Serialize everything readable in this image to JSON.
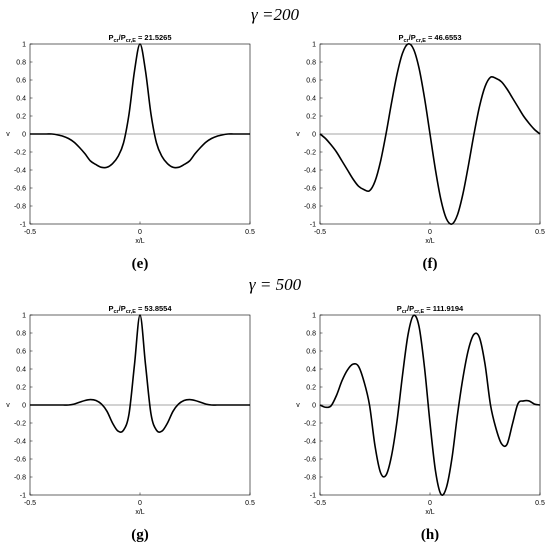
{
  "headings": [
    "γ =200",
    "γ = 500"
  ],
  "chart_data": [
    {
      "type": "line",
      "title": [
        "P",
        "cr",
        "/P",
        "cr,E",
        " = 21.5265"
      ],
      "caption": "(e)",
      "xlabel": "x/L",
      "ylabel": "v",
      "xlim": [
        -0.5,
        0.5
      ],
      "ylim": [
        -1,
        1
      ],
      "xticks": [
        -0.5,
        0,
        0.5
      ],
      "yticks": [
        -1,
        -0.8,
        -0.6,
        -0.4,
        -0.2,
        0,
        0.2,
        0.4,
        0.6,
        0.8,
        1
      ],
      "zero_line": true,
      "x": [
        -0.5,
        -0.475,
        -0.45,
        -0.425,
        -0.4,
        -0.375,
        -0.35,
        -0.325,
        -0.3,
        -0.275,
        -0.25,
        -0.225,
        -0.2,
        -0.175,
        -0.15,
        -0.125,
        -0.1,
        -0.075,
        -0.05,
        -0.025,
        0,
        0.025,
        0.05,
        0.075,
        0.1,
        0.125,
        0.15,
        0.175,
        0.2,
        0.225,
        0.25,
        0.275,
        0.3,
        0.325,
        0.35,
        0.375,
        0.4,
        0.425,
        0.45,
        0.475,
        0.5
      ],
      "series": [
        {
          "color": "#000000",
          "values": [
            0,
            0,
            0,
            0,
            0,
            -0.01,
            -0.025,
            -0.05,
            -0.09,
            -0.15,
            -0.22,
            -0.3,
            -0.34,
            -0.37,
            -0.37,
            -0.33,
            -0.25,
            -0.1,
            0.22,
            0.7,
            1,
            0.7,
            0.22,
            -0.1,
            -0.25,
            -0.33,
            -0.37,
            -0.37,
            -0.34,
            -0.3,
            -0.22,
            -0.15,
            -0.09,
            -0.05,
            -0.025,
            -0.01,
            0,
            0,
            0,
            0,
            0
          ]
        }
      ]
    },
    {
      "type": "line",
      "title": [
        "P",
        "cr",
        "/P",
        "cr,E",
        " = 46.6553"
      ],
      "caption": "(f)",
      "xlabel": "x/L",
      "ylabel": "v",
      "xlim": [
        -0.5,
        0.5
      ],
      "ylim": [
        -1,
        1
      ],
      "xticks": [
        -0.5,
        0,
        0.5
      ],
      "yticks": [
        -1,
        -0.8,
        -0.6,
        -0.4,
        -0.2,
        0,
        0.2,
        0.4,
        0.6,
        0.8,
        1
      ],
      "zero_line": true,
      "x": [
        -0.5,
        -0.475,
        -0.45,
        -0.425,
        -0.4,
        -0.375,
        -0.35,
        -0.325,
        -0.3,
        -0.275,
        -0.25,
        -0.225,
        -0.2,
        -0.175,
        -0.15,
        -0.125,
        -0.1,
        -0.075,
        -0.05,
        -0.025,
        0,
        0.025,
        0.05,
        0.075,
        0.1,
        0.125,
        0.15,
        0.175,
        0.2,
        0.225,
        0.25,
        0.275,
        0.3,
        0.325,
        0.35,
        0.375,
        0.4,
        0.425,
        0.45,
        0.475,
        0.5
      ],
      "series": [
        {
          "color": "#000000",
          "values": [
            0,
            -0.05,
            -0.12,
            -0.2,
            -0.3,
            -0.4,
            -0.5,
            -0.58,
            -0.618,
            -0.631,
            -0.526,
            -0.306,
            0,
            0.344,
            0.662,
            0.897,
            1,
            0.944,
            0.734,
            0.401,
            0,
            -0.401,
            -0.734,
            -0.944,
            -1,
            -0.897,
            -0.662,
            -0.344,
            0,
            0.306,
            0.526,
            0.631,
            0.618,
            0.58,
            0.5,
            0.4,
            0.3,
            0.2,
            0.12,
            0.05,
            0
          ]
        }
      ]
    },
    {
      "type": "line",
      "title": [
        "P",
        "cr",
        "/P",
        "cr,E",
        " = 53.8554"
      ],
      "caption": "(g)",
      "xlabel": "x/L",
      "ylabel": "v",
      "xlim": [
        -0.5,
        0.5
      ],
      "ylim": [
        -1,
        1
      ],
      "xticks": [
        -0.5,
        0,
        0.5
      ],
      "yticks": [
        -1,
        -0.8,
        -0.6,
        -0.4,
        -0.2,
        0,
        0.2,
        0.4,
        0.6,
        0.8,
        1
      ],
      "zero_line": true,
      "x": [
        -0.5,
        -0.475,
        -0.45,
        -0.425,
        -0.4,
        -0.375,
        -0.35,
        -0.325,
        -0.3,
        -0.275,
        -0.25,
        -0.225,
        -0.2,
        -0.175,
        -0.15,
        -0.125,
        -0.1,
        -0.075,
        -0.05,
        -0.025,
        0,
        0.025,
        0.05,
        0.075,
        0.1,
        0.125,
        0.15,
        0.175,
        0.2,
        0.225,
        0.25,
        0.275,
        0.3,
        0.325,
        0.35,
        0.375,
        0.4,
        0.425,
        0.45,
        0.475,
        0.5
      ],
      "series": [
        {
          "color": "#000000",
          "values": [
            0,
            0,
            0,
            0,
            0,
            0,
            0,
            0,
            0.01,
            0.03,
            0.05,
            0.06,
            0.05,
            0.01,
            -0.07,
            -0.2,
            -0.29,
            -0.28,
            -0.1,
            0.45,
            1,
            0.45,
            -0.1,
            -0.28,
            -0.29,
            -0.2,
            -0.07,
            0.01,
            0.05,
            0.06,
            0.05,
            0.03,
            0.01,
            0,
            0,
            0,
            0,
            0,
            0,
            0,
            0
          ]
        }
      ]
    },
    {
      "type": "line",
      "title": [
        "P",
        "cr",
        "/P",
        "cr,E",
        " = 111.9194"
      ],
      "caption": "(h)",
      "xlabel": "x/L",
      "ylabel": "v",
      "xlim": [
        -0.5,
        0.5
      ],
      "ylim": [
        -1,
        1
      ],
      "xticks": [
        -0.5,
        0,
        0.5
      ],
      "yticks": [
        -1,
        -0.8,
        -0.6,
        -0.4,
        -0.2,
        0,
        0.2,
        0.4,
        0.6,
        0.8,
        1
      ],
      "zero_line": true,
      "x": [
        -0.5,
        -0.475,
        -0.45,
        -0.425,
        -0.4,
        -0.375,
        -0.35,
        -0.325,
        -0.3,
        -0.275,
        -0.25,
        -0.225,
        -0.2,
        -0.175,
        -0.15,
        -0.125,
        -0.1,
        -0.075,
        -0.05,
        -0.025,
        0,
        0.025,
        0.05,
        0.075,
        0.1,
        0.125,
        0.15,
        0.175,
        0.2,
        0.225,
        0.25,
        0.275,
        0.3,
        0.325,
        0.35,
        0.375,
        0.4,
        0.425,
        0.45,
        0.475,
        0.5
      ],
      "series": [
        {
          "color": "#000000",
          "values": [
            0,
            -0.025,
            -0.01,
            0.107,
            0.27,
            0.39,
            0.454,
            0.43,
            0.26,
            0,
            -0.454,
            -0.75,
            -0.78,
            -0.566,
            -0.18,
            0.33,
            0.78,
            0.994,
            0.874,
            0.417,
            -0.2,
            -0.733,
            -0.992,
            -0.913,
            -0.588,
            -0.105,
            0.306,
            0.619,
            0.785,
            0.748,
            0.455,
            0,
            -0.261,
            -0.43,
            -0.437,
            -0.209,
            0.015,
            0.045,
            0.045,
            0.01,
            0
          ]
        }
      ]
    }
  ]
}
